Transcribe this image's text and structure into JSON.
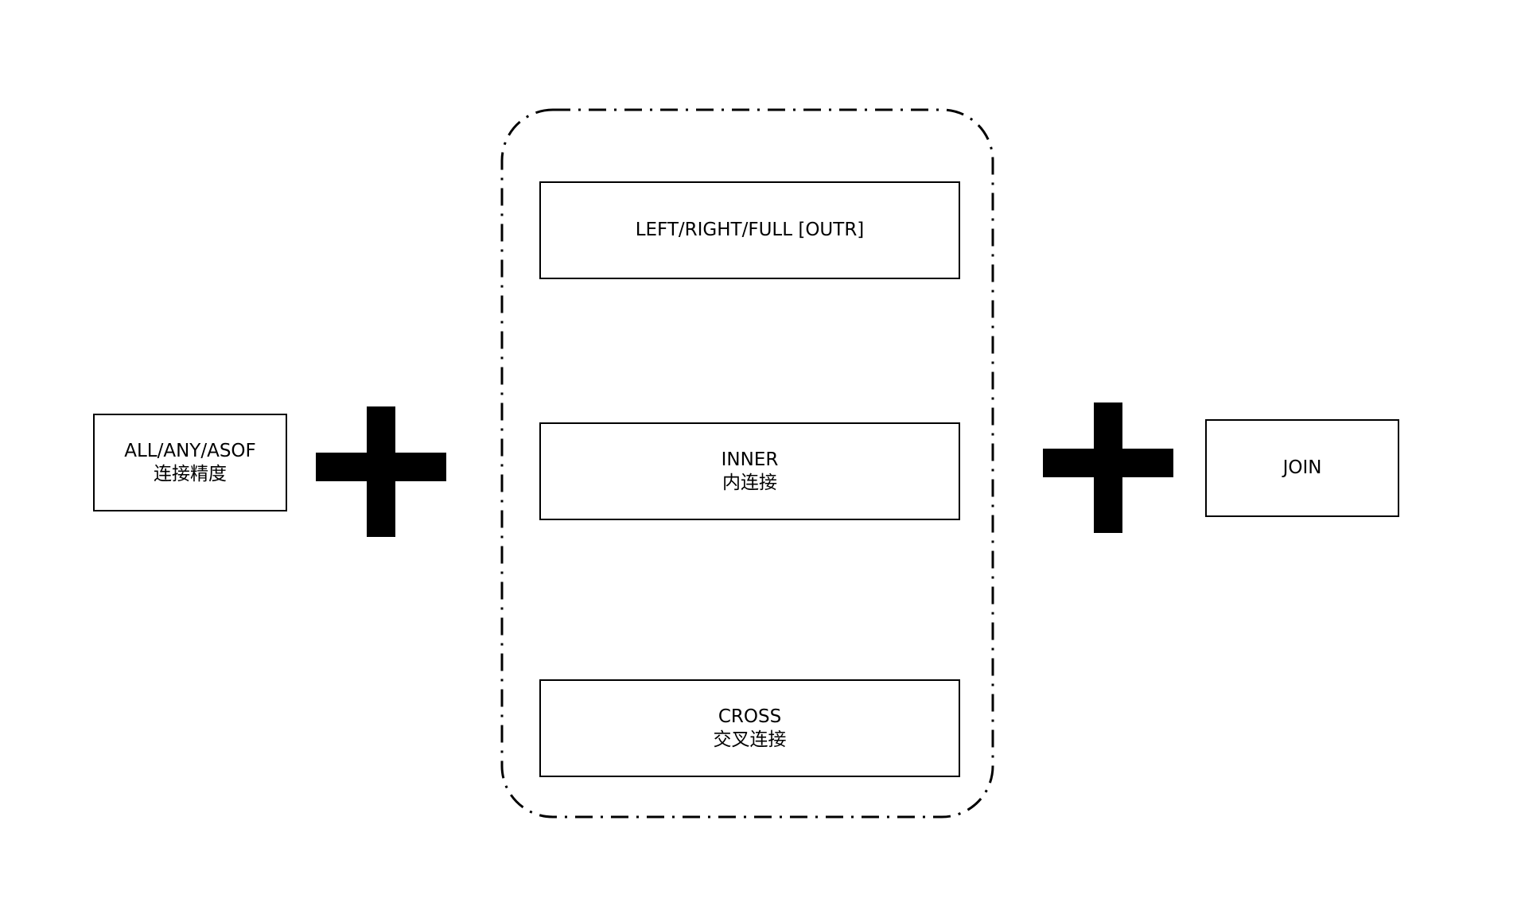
{
  "precision": {
    "line1": "ALL/ANY/ASOF",
    "line2": "连接精度"
  },
  "join_types": {
    "outer": {
      "line1": "LEFT/RIGHT/FULL [OUTR]"
    },
    "inner": {
      "line1": "INNER",
      "line2": "内连接"
    },
    "cross": {
      "line1": "CROSS",
      "line2": "交叉连接"
    }
  },
  "result": {
    "line1": "JOIN"
  },
  "icons": {
    "left_operator": "plus-icon",
    "right_operator": "plus-icon"
  },
  "colors": {
    "stroke": "#000000",
    "background": "#ffffff"
  }
}
